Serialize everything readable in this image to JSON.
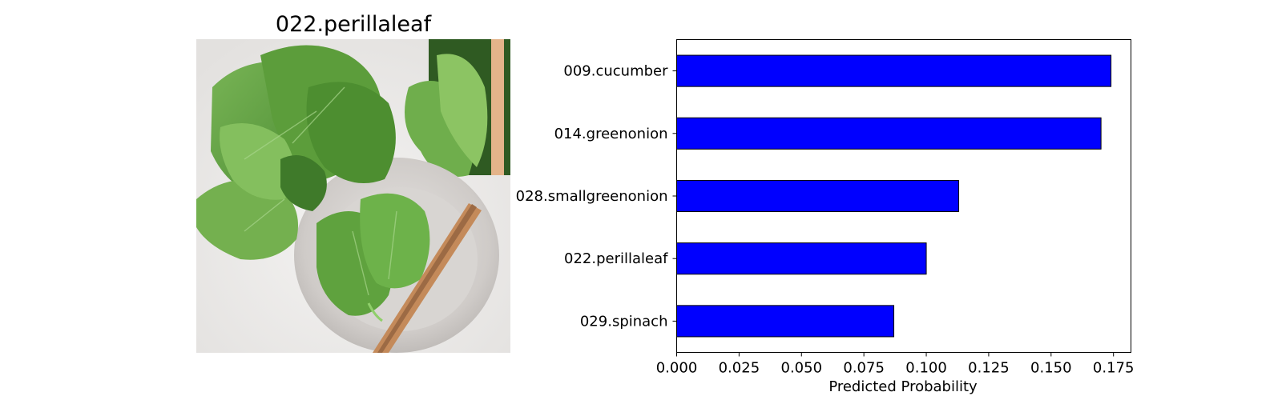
{
  "image_panel": {
    "title": "022.perillaleaf",
    "depiction": "photo-of-green-perilla-leaves-on-plate-with-chopsticks",
    "colors": {
      "leaf": "#5e9e3e",
      "leaf_dark": "#3f7a2a",
      "plate": "#c9c6c3",
      "background": "#eceae8",
      "chopsticks": "#c48a5a"
    }
  },
  "chart_data": {
    "type": "bar",
    "orientation": "horizontal",
    "categories": [
      "009.cucumber",
      "014.greenonion",
      "028.smallgreenonion",
      "022.perillaleaf",
      "029.spinach"
    ],
    "values": [
      0.174,
      0.17,
      0.113,
      0.1,
      0.087
    ],
    "xlabel": "Predicted Probability",
    "ylabel": "",
    "xlim": [
      0.0,
      0.182
    ],
    "xticks": [
      0.0,
      0.025,
      0.05,
      0.075,
      0.1,
      0.125,
      0.15,
      0.175
    ],
    "xtick_labels": [
      "0.000",
      "0.025",
      "0.050",
      "0.075",
      "0.100",
      "0.125",
      "0.150",
      "0.175"
    ],
    "bar_color": "#0000ff",
    "edge_color": "#000000",
    "grid": false
  }
}
